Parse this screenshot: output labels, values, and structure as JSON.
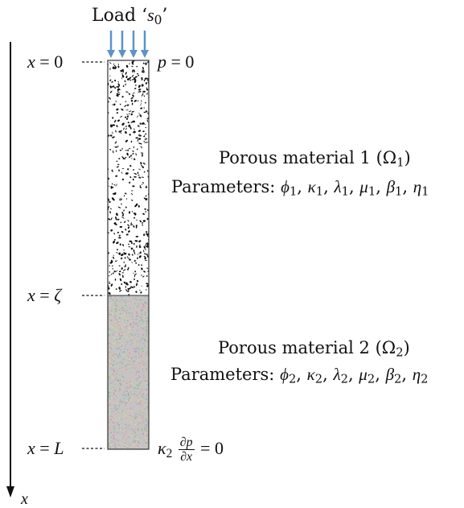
{
  "load": {
    "word": "Load",
    "open_quote": "‘",
    "symbol": "s",
    "subscript": "0",
    "close_quote": "’"
  },
  "x_axis": {
    "label": "x"
  },
  "levels": {
    "top": {
      "lhs": "x",
      "eq": " = ",
      "rhs": "0"
    },
    "interface": {
      "lhs": "x",
      "eq": " = ",
      "rhs": "ζ"
    },
    "bottom": {
      "lhs": "x",
      "eq": " = ",
      "rhs": "L"
    }
  },
  "bc_top": {
    "lhs": "p",
    "eq": " = ",
    "rhs": "0"
  },
  "bc_bottom": {
    "coef": "κ",
    "coef_sub": "2",
    "num": "∂p",
    "den": "∂x",
    "eq": " = ",
    "rhs": "0"
  },
  "material1": {
    "title": "Porous material 1 (Ω",
    "title_sub": "1",
    "title_close": ")",
    "params_label": "Parameters:",
    "params": [
      {
        "sym": "ϕ",
        "sub": "1"
      },
      {
        "sym": "κ",
        "sub": "1"
      },
      {
        "sym": "λ",
        "sub": "1"
      },
      {
        "sym": "μ",
        "sub": "1"
      },
      {
        "sym": "β",
        "sub": "1"
      },
      {
        "sym": "η",
        "sub": "1"
      }
    ]
  },
  "material2": {
    "title": "Porous material 2 (Ω",
    "title_sub": "2",
    "title_close": ")",
    "params_label": "Parameters:",
    "params": [
      {
        "sym": "ϕ",
        "sub": "2"
      },
      {
        "sym": "κ",
        "sub": "2"
      },
      {
        "sym": "λ",
        "sub": "2"
      },
      {
        "sym": "μ",
        "sub": "2"
      },
      {
        "sym": "β",
        "sub": "2"
      },
      {
        "sym": "η",
        "sub": "2"
      }
    ]
  },
  "colors": {
    "arrow_blue": "#5b93c8",
    "axis": "#111111",
    "column_border": "#333333",
    "speckle_dark": "#111111",
    "speckle_palette": [
      "#c9a0d6",
      "#9ad39a",
      "#f1a7a7",
      "#a7c7f1",
      "#e6d79b",
      "#7fbfbf",
      "#d18bc5",
      "#8aa"
    ]
  }
}
